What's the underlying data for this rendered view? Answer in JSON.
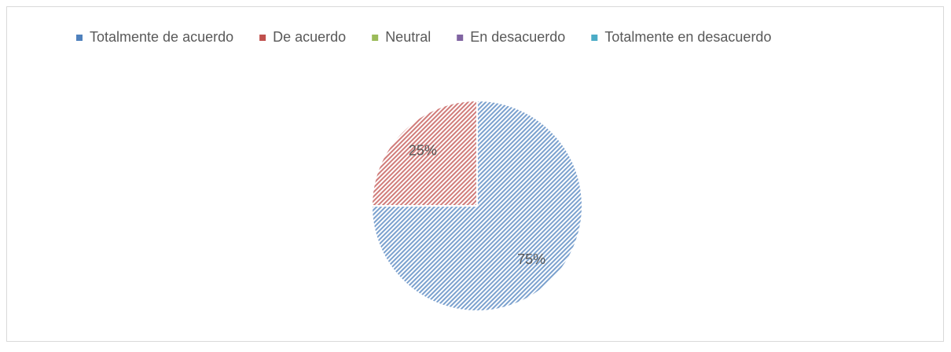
{
  "chart_data": {
    "type": "pie",
    "categories": [
      "Totalmente de acuerdo",
      "De acuerdo",
      "Neutral",
      "En desacuerdo",
      "Totalmente en desacuerdo"
    ],
    "values": [
      75,
      25,
      0,
      0,
      0
    ],
    "value_labels": [
      "75%",
      "25%",
      null,
      null,
      null
    ],
    "colors": [
      "#4f81bd",
      "#c0504d",
      "#9bbb59",
      "#8064a2",
      "#4bacc6"
    ],
    "legend": "top"
  }
}
